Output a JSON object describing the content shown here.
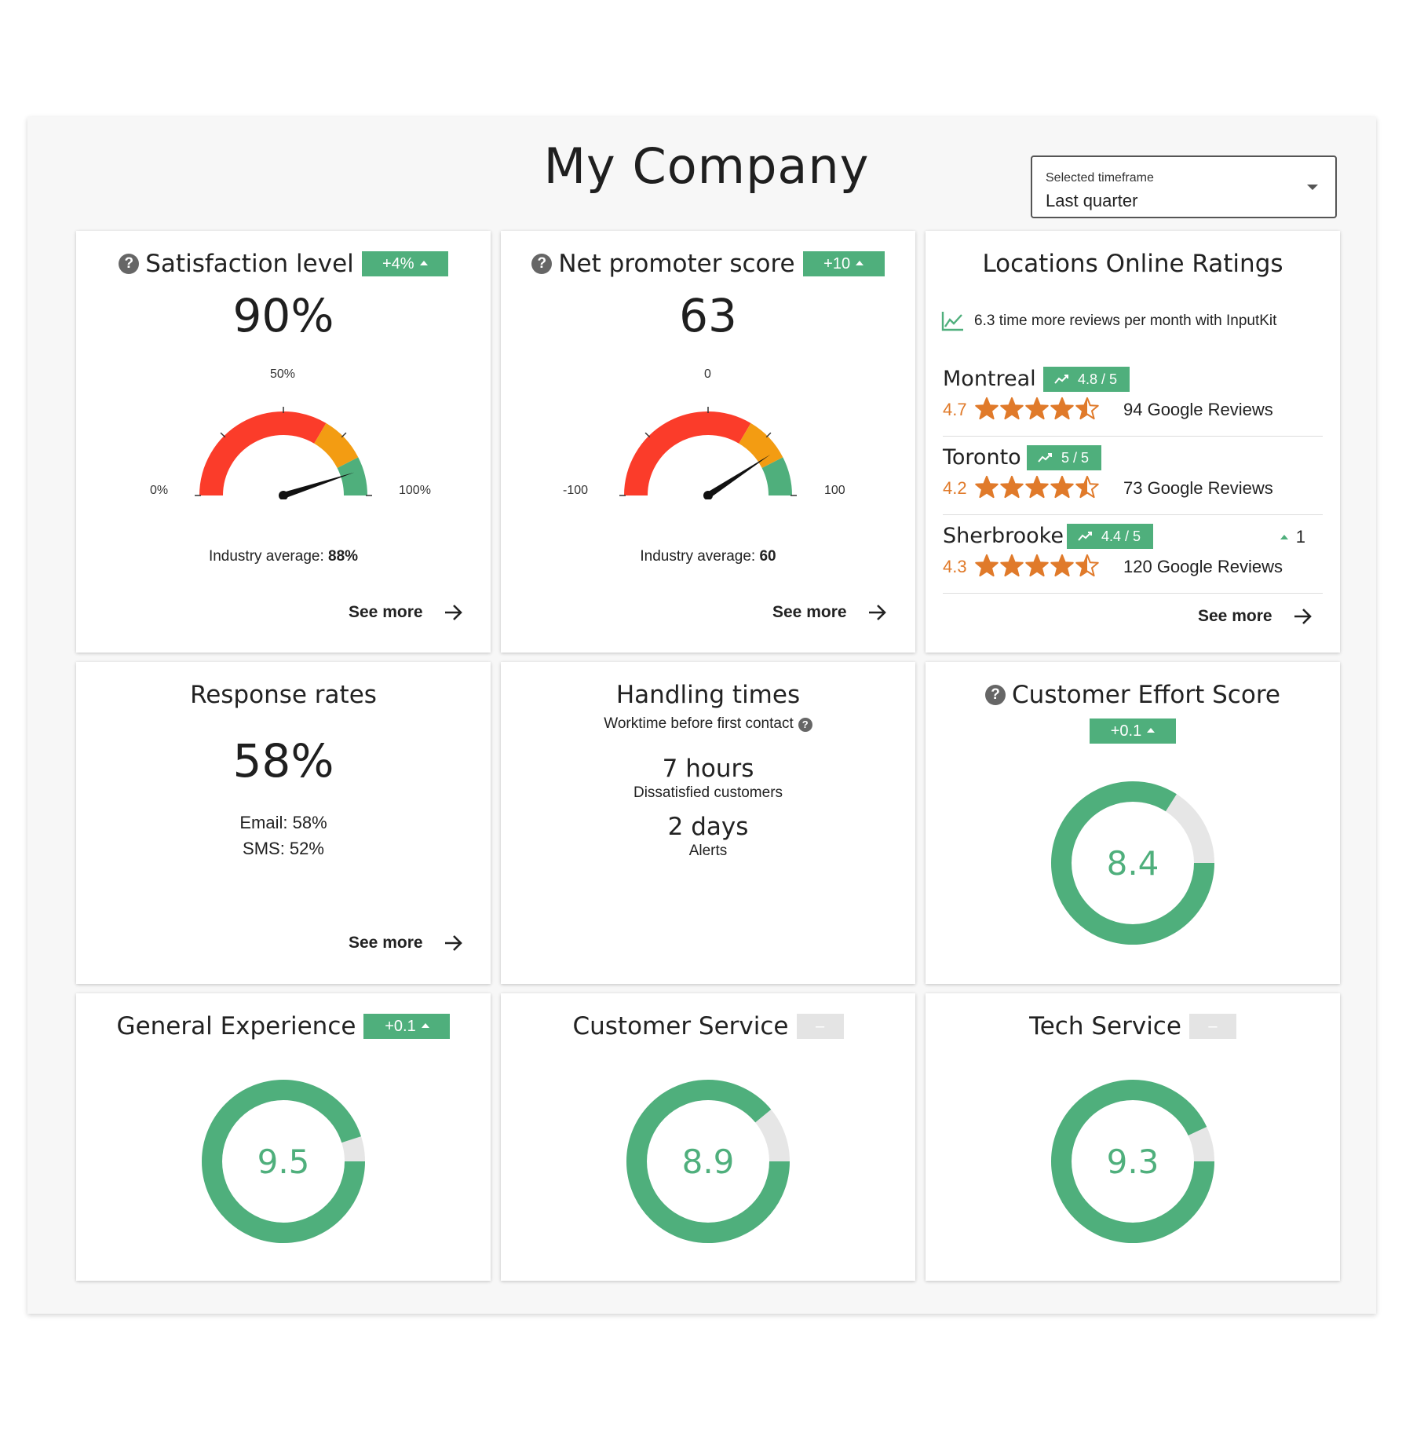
{
  "page": {
    "title": "My Company"
  },
  "timeframe": {
    "label": "Selected timeframe",
    "value": "Last quarter"
  },
  "satisfaction": {
    "title": "Satisfaction level",
    "badge": "+4%",
    "value": "90%",
    "gauge_min_label": "0%",
    "gauge_mid_label": "50%",
    "gauge_max_label": "100%",
    "gauge_value_fraction": 0.9,
    "industry_label": "Industry average:",
    "industry_value": "88%",
    "see_more": "See more"
  },
  "nps": {
    "title": "Net promoter score",
    "badge": "+10",
    "value": "63",
    "gauge_min_label": "-100",
    "gauge_mid_label": "0",
    "gauge_max_label": "100",
    "gauge_value_fraction": 0.815,
    "industry_label": "Industry average:",
    "industry_value": "60",
    "see_more": "See more"
  },
  "locations": {
    "title": "Locations Online Ratings",
    "promo": "6.3 time more reviews per month with InputKit",
    "items": [
      {
        "name": "Montreal",
        "badge": "4.8 / 5",
        "rating": "4.7",
        "reviews": "94 Google Reviews",
        "delta": ""
      },
      {
        "name": "Toronto",
        "badge": "5 / 5",
        "rating": "4.2",
        "reviews": "73 Google Reviews",
        "delta": ""
      },
      {
        "name": "Sherbrooke",
        "badge": "4.4 / 5",
        "rating": "4.3",
        "reviews": "120 Google Reviews",
        "delta": "1"
      }
    ],
    "see_more": "See more"
  },
  "response": {
    "title": "Response rates",
    "value": "58%",
    "email": "Email: 58%",
    "sms": "SMS: 52%",
    "see_more": "See more"
  },
  "handling": {
    "title": "Handling times",
    "subtitle": "Worktime before first contact",
    "v1": "7 hours",
    "l1": "Dissatisfied customers",
    "v2": "2 days",
    "l2": "Alerts"
  },
  "ces": {
    "title": "Customer Effort Score",
    "badge": "+0.1",
    "value": "8.4",
    "fraction": 0.84
  },
  "general": {
    "title": "General Experience",
    "badge": "+0.1",
    "value": "9.5",
    "fraction": 0.95
  },
  "customer_service": {
    "title": "Customer Service",
    "badge": "–",
    "value": "8.9",
    "fraction": 0.89
  },
  "tech_service": {
    "title": "Tech Service",
    "badge": "–",
    "value": "9.3",
    "fraction": 0.93
  },
  "colors": {
    "green": "#4faf7c",
    "red": "#fb3c2a",
    "orange": "#f39c12",
    "track": "#e6e6e6",
    "star": "#e07a2a"
  }
}
